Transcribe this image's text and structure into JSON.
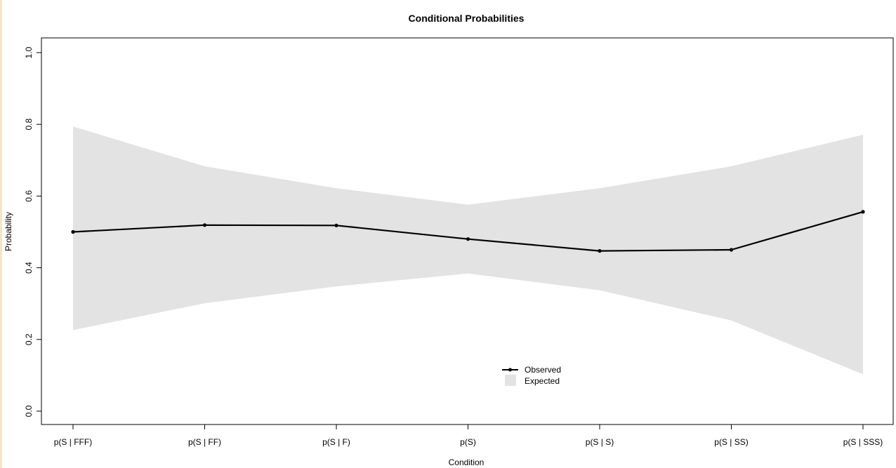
{
  "chart_data": {
    "type": "line",
    "title": "Conditional Probabilities",
    "xlabel": "Condition",
    "ylabel": "Probability",
    "categories": [
      "p(S | FFF)",
      "p(S | FF)",
      "p(S | F)",
      "p(S)",
      "p(S | S)",
      "p(S | SS)",
      "p(S | SSS)"
    ],
    "ylim": [
      0.0,
      1.0
    ],
    "yticks": [
      "0.0",
      "0.2",
      "0.4",
      "0.6",
      "0.8",
      "1.0"
    ],
    "series": [
      {
        "name": "Observed",
        "values": [
          0.5,
          0.519,
          0.518,
          0.48,
          0.447,
          0.45,
          0.556
        ]
      }
    ],
    "band": {
      "name": "Expected",
      "lower": [
        0.226,
        0.301,
        0.348,
        0.384,
        0.337,
        0.253,
        0.103
      ],
      "upper": [
        0.794,
        0.683,
        0.622,
        0.576,
        0.622,
        0.683,
        0.771
      ]
    },
    "grid": false,
    "legend_position": "bottom-center",
    "colors": {
      "line": "#000000",
      "band": "#e3e3e3",
      "axis": "#000000"
    }
  }
}
